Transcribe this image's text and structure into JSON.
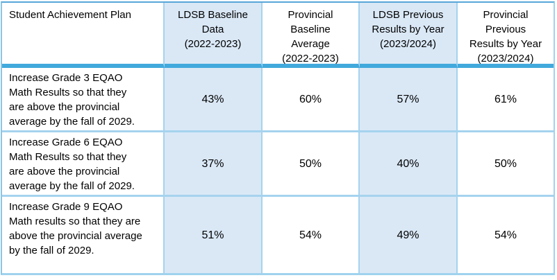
{
  "table": {
    "title": "Student Achievement Plan results table",
    "header": {
      "cells": [
        {
          "text": "Student Achievement Plan"
        },
        {
          "text": "LDSB Baseline\nData\n(2022-2023)"
        },
        {
          "text": "Provincial\nBaseline\nAverage\n(2022-2023)"
        },
        {
          "text": "LDSB Previous\nResults by Year\n(2023/2024)"
        },
        {
          "text": "Provincial\nPrevious\nResults by Year\n(2023/2024)"
        }
      ]
    },
    "rows": [
      {
        "goal": "Increase Grade 3 EQAO\nMath Results so that they\nare above the provincial\naverage by the fall of 2029.",
        "values": [
          "43%",
          "60%",
          "57%",
          "61%"
        ]
      },
      {
        "goal": "Increase Grade 6 EQAO\nMath Results so that they\nare above the provincial\naverage by the fall of 2029.",
        "values": [
          "37%",
          "50%",
          "40%",
          "50%"
        ]
      },
      {
        "goal": "Increase Grade 9 EQAO\nMath results so that they are\nabove the provincial average\nby the fall of 2029.",
        "values": [
          "51%",
          "54%",
          "49%",
          "54%"
        ]
      }
    ],
    "colors": {
      "highlight_fill": "#dae8f6",
      "header_separator": "#41a9dc",
      "inner_border": "#a5d3ee",
      "outer_border_top": "#56a6d8",
      "outer_border_sides": "#9fd2ee"
    }
  }
}
